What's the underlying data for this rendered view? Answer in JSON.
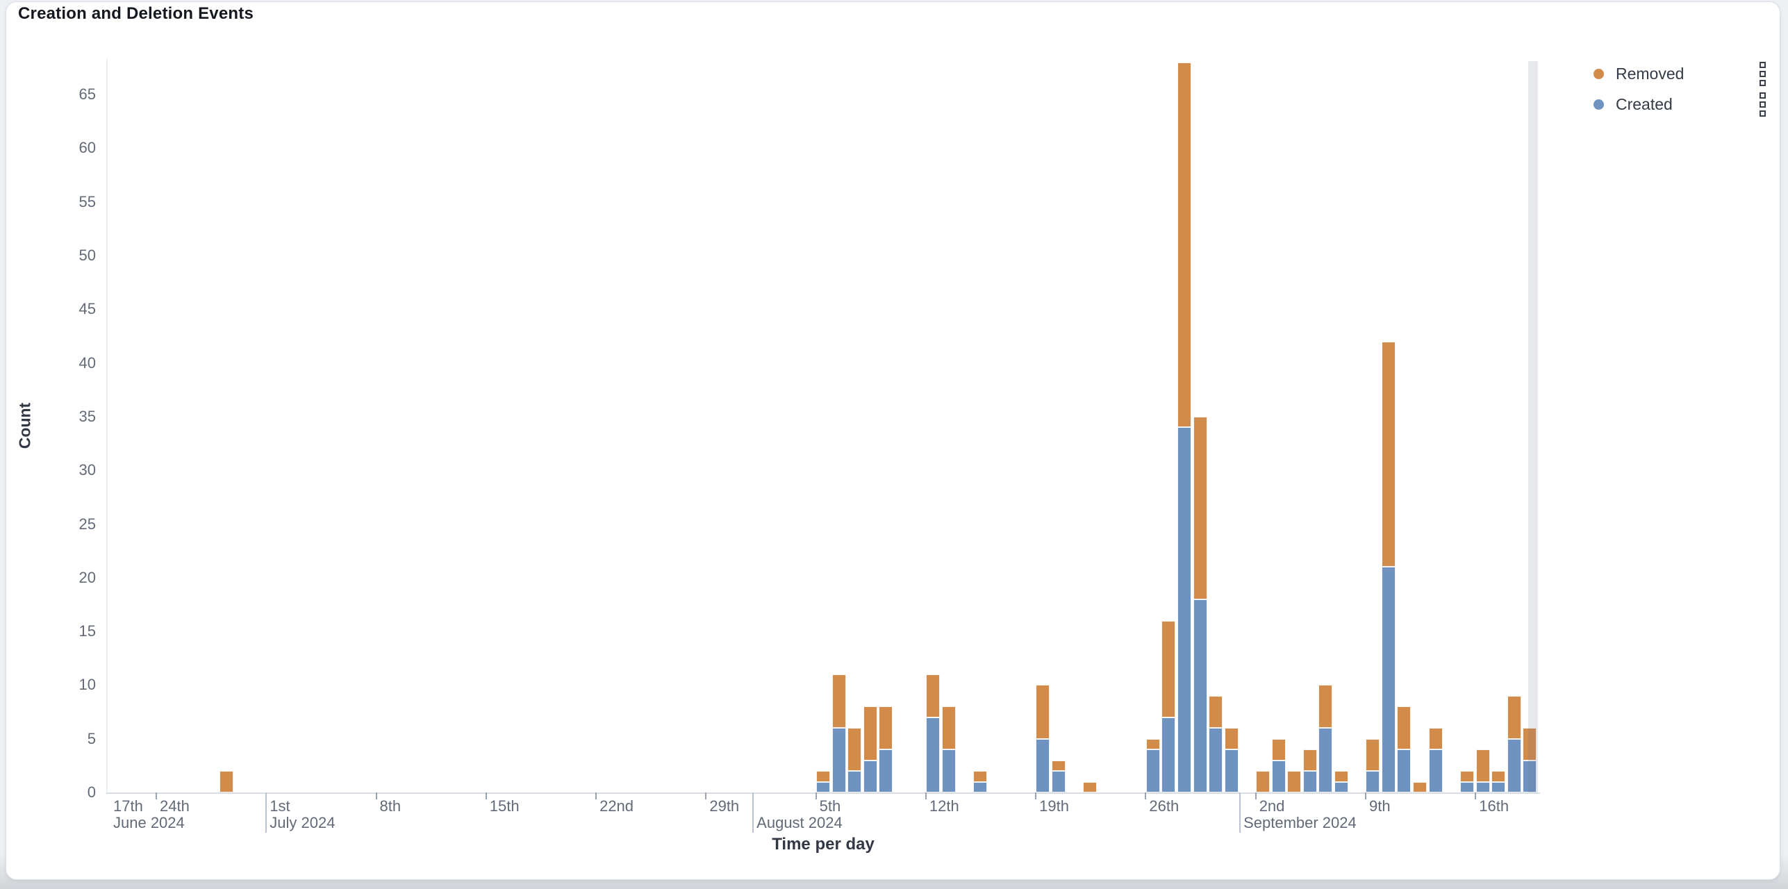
{
  "page": {
    "title": "Creation and Deletion Events"
  },
  "legend": {
    "items": [
      {
        "label": "Removed",
        "color": "#d28b48"
      },
      {
        "label": "Created",
        "color": "#6e93c1"
      }
    ],
    "actions_icon": "stacked-squares"
  },
  "axes": {
    "y_title": "Count",
    "x_title": "Time per day",
    "y_ticks": [
      0,
      5,
      10,
      15,
      20,
      25,
      30,
      35,
      40,
      45,
      50,
      55,
      60,
      65
    ]
  },
  "chart_data": {
    "type": "bar",
    "stacked": true,
    "title": "Creation and Deletion Events",
    "xlabel": "Time per day",
    "ylabel": "Count",
    "ylim": [
      0,
      68
    ],
    "xlim": [
      "2024-06-21",
      "2024-09-20"
    ],
    "grid": false,
    "legend_position": "top-right",
    "series": [
      {
        "name": "Created",
        "color": "#6e93c1"
      },
      {
        "name": "Removed",
        "color": "#d28b48"
      }
    ],
    "points": [
      {
        "date": "2024-06-28",
        "created": 0,
        "removed": 2
      },
      {
        "date": "2024-08-05",
        "created": 1,
        "removed": 1
      },
      {
        "date": "2024-08-06",
        "created": 6,
        "removed": 5
      },
      {
        "date": "2024-08-07",
        "created": 2,
        "removed": 4
      },
      {
        "date": "2024-08-08",
        "created": 3,
        "removed": 5
      },
      {
        "date": "2024-08-09",
        "created": 4,
        "removed": 4
      },
      {
        "date": "2024-08-12",
        "created": 7,
        "removed": 4
      },
      {
        "date": "2024-08-13",
        "created": 4,
        "removed": 4
      },
      {
        "date": "2024-08-15",
        "created": 1,
        "removed": 1
      },
      {
        "date": "2024-08-19",
        "created": 5,
        "removed": 5
      },
      {
        "date": "2024-08-20",
        "created": 2,
        "removed": 1
      },
      {
        "date": "2024-08-22",
        "created": 0,
        "removed": 1
      },
      {
        "date": "2024-08-26",
        "created": 4,
        "removed": 1
      },
      {
        "date": "2024-08-27",
        "created": 7,
        "removed": 9
      },
      {
        "date": "2024-08-28",
        "created": 34,
        "removed": 34
      },
      {
        "date": "2024-08-29",
        "created": 18,
        "removed": 17
      },
      {
        "date": "2024-08-30",
        "created": 6,
        "removed": 3
      },
      {
        "date": "2024-08-31",
        "created": 4,
        "removed": 2
      },
      {
        "date": "2024-09-02",
        "created": 0,
        "removed": 2
      },
      {
        "date": "2024-09-03",
        "created": 3,
        "removed": 2
      },
      {
        "date": "2024-09-04",
        "created": 0,
        "removed": 2
      },
      {
        "date": "2024-09-05",
        "created": 2,
        "removed": 2
      },
      {
        "date": "2024-09-06",
        "created": 6,
        "removed": 4
      },
      {
        "date": "2024-09-07",
        "created": 1,
        "removed": 1
      },
      {
        "date": "2024-09-09",
        "created": 2,
        "removed": 3
      },
      {
        "date": "2024-09-10",
        "created": 21,
        "removed": 21
      },
      {
        "date": "2024-09-11",
        "created": 4,
        "removed": 4
      },
      {
        "date": "2024-09-12",
        "created": 0,
        "removed": 1
      },
      {
        "date": "2024-09-13",
        "created": 4,
        "removed": 2
      },
      {
        "date": "2024-09-15",
        "created": 1,
        "removed": 1
      },
      {
        "date": "2024-09-16",
        "created": 1,
        "removed": 3
      },
      {
        "date": "2024-09-17",
        "created": 1,
        "removed": 1
      },
      {
        "date": "2024-09-18",
        "created": 5,
        "removed": 4
      },
      {
        "date": "2024-09-19",
        "created": 3,
        "removed": 3
      }
    ],
    "x_ticks": [
      {
        "label": "17th",
        "date": "2024-06-17",
        "clamped": true,
        "month_label": "June 2024"
      },
      {
        "label": "24th",
        "date": "2024-06-24"
      },
      {
        "label": "1st",
        "date": "2024-07-01",
        "month_line": true,
        "month_label": "July 2024"
      },
      {
        "label": "8th",
        "date": "2024-07-08"
      },
      {
        "label": "15th",
        "date": "2024-07-15"
      },
      {
        "label": "22nd",
        "date": "2024-07-22"
      },
      {
        "label": "29th",
        "date": "2024-07-29"
      },
      {
        "label": "5th",
        "date": "2024-08-05"
      },
      {
        "label": "12th",
        "date": "2024-08-12"
      },
      {
        "label": "19th",
        "date": "2024-08-19"
      },
      {
        "label": "26th",
        "date": "2024-08-26"
      },
      {
        "label": "2nd",
        "date": "2024-09-02"
      },
      {
        "label": "9th",
        "date": "2024-09-09"
      },
      {
        "label": "16th",
        "date": "2024-09-16"
      }
    ],
    "month_boundaries": [
      {
        "label": "August 2024",
        "date": "2024-08-01"
      },
      {
        "label": "September 2024",
        "date": "2024-09-01"
      }
    ],
    "partial_bucket_overlay": {
      "date": "2024-09-20",
      "color": "rgba(108,115,130,0.16)"
    }
  }
}
